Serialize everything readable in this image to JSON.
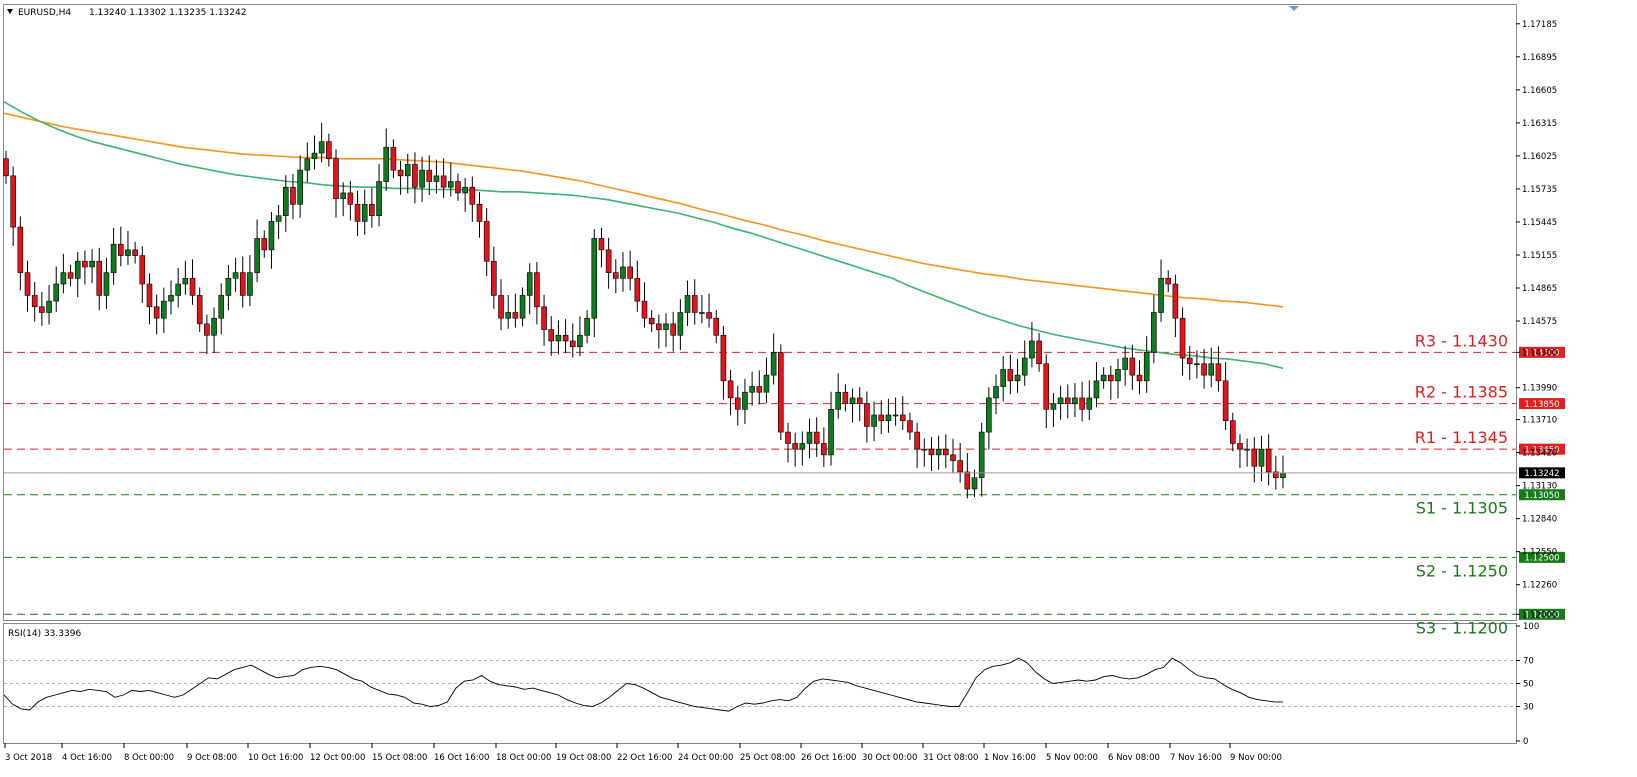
{
  "header": {
    "symbol_timeframe": "EURUSD,H4",
    "ohlc": "1.13240 1.13302 1.13235 1.13242",
    "dropdown_icon": "triangle-down-icon"
  },
  "rsi_panel": {
    "label": "RSI(14) 33.3396",
    "levels": [
      70,
      50,
      30
    ],
    "y_ticks": [
      "100",
      "70",
      "50",
      "30",
      "0"
    ]
  },
  "colors": {
    "bull": "#0f7a1e",
    "bear": "#e0141c",
    "sma_fast": "#3cb46e",
    "sma_slow": "#f7931e",
    "resistance": "#e02020",
    "support": "#1a7a1a",
    "rsi_line": "#000000"
  },
  "price_axis": {
    "ticks": [
      "1.17185",
      "1.16895",
      "1.16605",
      "1.16315",
      "1.16025",
      "1.15735",
      "1.15445",
      "1.15155",
      "1.14865",
      "1.14575",
      "1.14300",
      "1.13990",
      "1.13710",
      "1.13420",
      "1.13130",
      "1.12840",
      "1.12550",
      "1.12260",
      "1.12000"
    ]
  },
  "current_price": {
    "label": "1.13242",
    "value": 1.13242
  },
  "levels": [
    {
      "name": "R3",
      "text": "R3 - 1.1430",
      "price": 1.143,
      "tag": "1.14300",
      "type": "resistance"
    },
    {
      "name": "R2",
      "text": "R2 - 1.1385",
      "price": 1.1385,
      "tag": "1.13850",
      "type": "resistance"
    },
    {
      "name": "R1",
      "text": "R1 - 1.1345",
      "price": 1.1345,
      "tag": "1.13450",
      "type": "resistance"
    },
    {
      "name": "S1",
      "text": "S1 - 1.1305",
      "price": 1.1305,
      "tag": "1.13050",
      "type": "support"
    },
    {
      "name": "S2",
      "text": "S2 - 1.1250",
      "price": 1.125,
      "tag": "1.12500",
      "type": "support"
    },
    {
      "name": "S3",
      "text": "S3 - 1.1200",
      "price": 1.12,
      "tag": "1.12000",
      "type": "support"
    }
  ],
  "time_axis": {
    "labels": [
      "3 Oct 2018",
      "4 Oct 16:00",
      "8 Oct 00:00",
      "9 Oct 08:00",
      "10 Oct 16:00",
      "12 Oct 00:00",
      "15 Oct 08:00",
      "16 Oct 16:00",
      "18 Oct 00:00",
      "19 Oct 08:00",
      "22 Oct 16:00",
      "24 Oct 00:00",
      "25 Oct 08:00",
      "26 Oct 16:00",
      "30 Oct 00:00",
      "31 Oct 08:00",
      "1 Nov 16:00",
      "5 Nov 00:00",
      "6 Nov 08:00",
      "7 Nov 16:00",
      "9 Nov 00:00"
    ]
  },
  "chart_data": {
    "type": "candlestick",
    "symbol": "EURUSD",
    "timeframe": "H4",
    "ylim": [
      1.1195,
      1.1735
    ],
    "series": [
      {
        "name": "EURUSD",
        "type": "candlestick",
        "close": [
          1.1585,
          1.154,
          1.15,
          1.148,
          1.147,
          1.1465,
          1.1475,
          1.149,
          1.15,
          1.1495,
          1.151,
          1.1505,
          1.151,
          1.148,
          1.15,
          1.1525,
          1.1515,
          1.152,
          1.1515,
          1.149,
          1.147,
          1.146,
          1.1475,
          1.148,
          1.149,
          1.1495,
          1.148,
          1.1455,
          1.1445,
          1.146,
          1.148,
          1.1495,
          1.15,
          1.148,
          1.15,
          1.153,
          1.152,
          1.1545,
          1.155,
          1.1575,
          1.156,
          1.159,
          1.16,
          1.1605,
          1.1615,
          1.16,
          1.1565,
          1.157,
          1.156,
          1.1545,
          1.156,
          1.155,
          1.158,
          1.161,
          1.159,
          1.1585,
          1.1595,
          1.1575,
          1.159,
          1.158,
          1.1585,
          1.1575,
          1.158,
          1.157,
          1.1575,
          1.156,
          1.1545,
          1.151,
          1.148,
          1.146,
          1.1465,
          1.146,
          1.148,
          1.15,
          1.147,
          1.145,
          1.144,
          1.1445,
          1.144,
          1.1435,
          1.1445,
          1.146,
          1.153,
          1.152,
          1.15,
          1.1495,
          1.1505,
          1.1495,
          1.1475,
          1.146,
          1.1455,
          1.145,
          1.1455,
          1.1445,
          1.1465,
          1.148,
          1.1465,
          1.1465,
          1.146,
          1.1445,
          1.1405,
          1.139,
          1.138,
          1.1395,
          1.14,
          1.1395,
          1.141,
          1.143,
          1.136,
          1.135,
          1.1345,
          1.135,
          1.136,
          1.135,
          1.134,
          1.138,
          1.1395,
          1.1385,
          1.139,
          1.1385,
          1.1365,
          1.1375,
          1.137,
          1.1375,
          1.1375,
          1.137,
          1.136,
          1.1345,
          1.1345,
          1.134,
          1.1345,
          1.134,
          1.1335,
          1.1325,
          1.131,
          1.132,
          1.136,
          1.139,
          1.14,
          1.1415,
          1.1405,
          1.141,
          1.1425,
          1.144,
          1.142,
          1.138,
          1.1385,
          1.139,
          1.1385,
          1.139,
          1.138,
          1.139,
          1.1405,
          1.141,
          1.1405,
          1.1415,
          1.1425,
          1.141,
          1.1405,
          1.143,
          1.1465,
          1.1495,
          1.149,
          1.146,
          1.1425,
          1.142,
          1.142,
          1.141,
          1.142,
          1.1405,
          1.137,
          1.135,
          1.1345,
          1.1345,
          1.133,
          1.1345,
          1.1325,
          1.132,
          1.1324
        ]
      },
      {
        "name": "SMA fast",
        "type": "line",
        "values": [
          1.165,
          1.1641,
          1.1633,
          1.1626,
          1.162,
          1.1615,
          1.1611,
          1.1607,
          1.1603,
          1.1599,
          1.1595,
          1.1592,
          1.1589,
          1.1586,
          1.1584,
          1.1582,
          1.158,
          1.1579,
          1.1577,
          1.1576,
          1.1575,
          1.1575,
          1.1574,
          1.1574,
          1.1573,
          1.1573,
          1.1573,
          1.1572,
          1.1571,
          1.1571,
          1.157,
          1.1569,
          1.1568,
          1.1566,
          1.1564,
          1.1561,
          1.1558,
          1.1555,
          1.1552,
          1.1548,
          1.1544,
          1.1539,
          1.1535,
          1.153,
          1.1525,
          1.152,
          1.1515,
          1.151,
          1.1505,
          1.15,
          1.1495,
          1.1488,
          1.1482,
          1.1476,
          1.147,
          1.1464,
          1.1459,
          1.1454,
          1.145,
          1.1446,
          1.1443,
          1.144,
          1.1437,
          1.1434,
          1.1432,
          1.143,
          1.1428,
          1.1427,
          1.1425,
          1.1424,
          1.1422,
          1.142,
          1.1416
        ]
      },
      {
        "name": "SMA slow",
        "type": "line",
        "values": [
          1.164,
          1.1636,
          1.1632,
          1.1628,
          1.1625,
          1.1622,
          1.1619,
          1.1616,
          1.1613,
          1.161,
          1.1608,
          1.1606,
          1.1604,
          1.1603,
          1.1602,
          1.1601,
          1.1601,
          1.16,
          1.16,
          1.16,
          1.1599,
          1.1598,
          1.1597,
          1.1595,
          1.1593,
          1.1591,
          1.1589,
          1.1586,
          1.1583,
          1.158,
          1.1576,
          1.1572,
          1.1568,
          1.1564,
          1.156,
          1.1555,
          1.1551,
          1.1546,
          1.1542,
          1.1537,
          1.1533,
          1.1528,
          1.1524,
          1.152,
          1.1516,
          1.1512,
          1.1508,
          1.1505,
          1.1502,
          1.1499,
          1.1497,
          1.1494,
          1.1492,
          1.149,
          1.1488,
          1.1486,
          1.1484,
          1.1482,
          1.148,
          1.1478,
          1.1477,
          1.1475,
          1.1474,
          1.1472,
          1.147
        ]
      }
    ],
    "rsi": {
      "name": "RSI(14)",
      "ylim": [
        0,
        100
      ],
      "values": [
        40,
        32,
        28,
        27,
        34,
        38,
        40,
        42,
        44,
        43,
        45,
        44,
        43,
        38,
        40,
        44,
        43,
        44,
        42,
        40,
        38,
        40,
        45,
        50,
        55,
        54,
        58,
        62,
        64,
        66,
        62,
        58,
        55,
        56,
        57,
        62,
        64,
        65,
        64,
        62,
        58,
        54,
        52,
        47,
        44,
        41,
        40,
        38,
        33,
        32,
        30,
        31,
        34,
        46,
        52,
        53,
        57,
        52,
        49,
        48,
        47,
        45,
        46,
        44,
        42,
        40,
        36,
        33,
        31,
        30,
        33,
        38,
        44,
        50,
        49,
        46,
        42,
        38,
        36,
        34,
        32,
        30,
        29,
        28,
        27,
        26,
        30,
        33,
        32,
        33,
        35,
        36,
        35,
        38,
        46,
        52,
        54,
        53,
        52,
        51,
        48,
        46,
        44,
        42,
        40,
        38,
        36,
        34,
        33,
        32,
        31,
        30,
        30,
        42,
        55,
        62,
        65,
        66,
        68,
        72,
        68,
        60,
        54,
        50,
        51,
        52,
        53,
        52,
        53,
        56,
        57,
        55,
        54,
        55,
        58,
        62,
        64,
        72,
        68,
        62,
        57,
        55,
        54,
        49,
        45,
        42,
        38,
        36,
        35,
        34,
        34
      ]
    },
    "xlabel": "",
    "ylabel": ""
  }
}
